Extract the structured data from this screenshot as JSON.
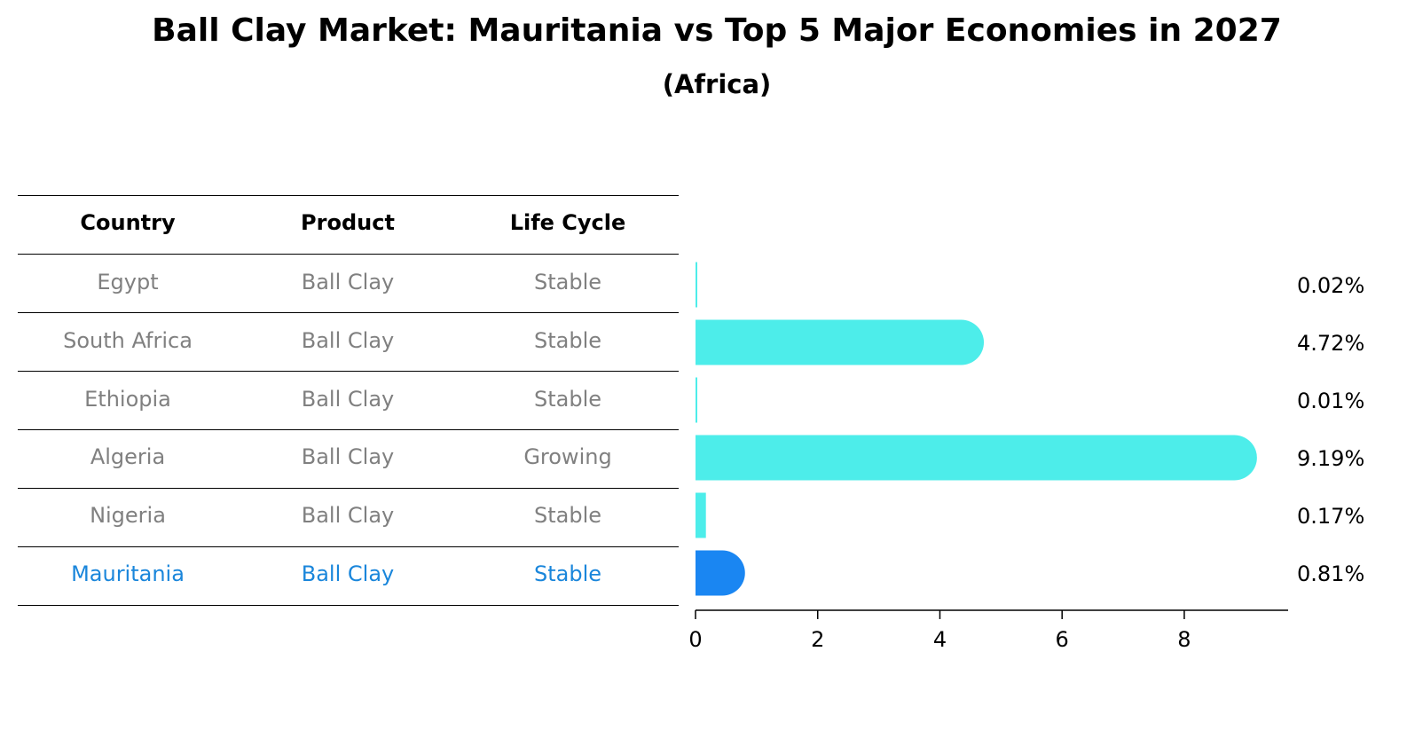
{
  "title": "Ball Clay Market: Mauritania vs Top 5 Major Economies in 2027",
  "subtitle": "(Africa)",
  "table": {
    "headers": [
      "Country",
      "Product",
      "Life Cycle"
    ],
    "rows": [
      [
        "Egypt",
        "Ball Clay",
        "Stable"
      ],
      [
        "South Africa",
        "Ball Clay",
        "Stable"
      ],
      [
        "Ethiopia",
        "Ball Clay",
        "Stable"
      ],
      [
        "Algeria",
        "Ball Clay",
        "Growing"
      ],
      [
        "Nigeria",
        "Ball Clay",
        "Stable"
      ],
      [
        "Mauritania",
        "Ball Clay",
        "Stable"
      ]
    ],
    "highlight_row": 5
  },
  "colors": {
    "normal_bar": "#4DEDEA",
    "highlight_bar": "#1A86F2",
    "normal_text": "#808080",
    "highlight_text": "#1A86DB",
    "header_text": "#000000"
  },
  "chart_data": {
    "type": "bar",
    "orientation": "horizontal",
    "categories": [
      "Egypt",
      "South Africa",
      "Ethiopia",
      "Algeria",
      "Nigeria",
      "Mauritania"
    ],
    "values": [
      0.02,
      4.72,
      0.01,
      9.19,
      0.17,
      0.81
    ],
    "value_labels": [
      "0.02%",
      "4.72%",
      "0.01%",
      "9.19%",
      "0.17%",
      "0.81%"
    ],
    "highlight": "Mauritania",
    "xticks": [
      0,
      2,
      4,
      6,
      8
    ],
    "xlim": [
      0,
      9.7
    ],
    "grid": false
  }
}
